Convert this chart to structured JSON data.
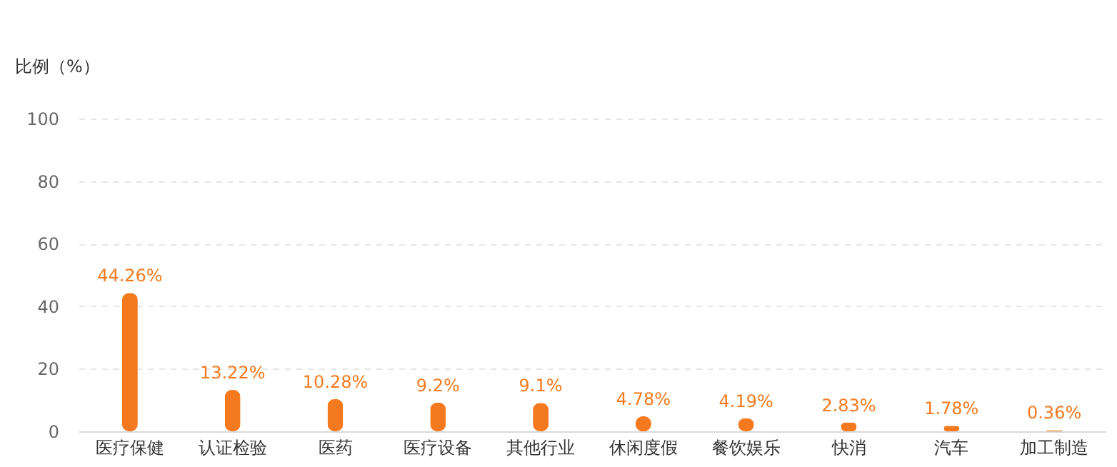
{
  "chart_data": {
    "type": "bar",
    "ylabel": "比例（%）",
    "categories": [
      "医疗保健",
      "认证检验",
      "医药",
      "医疗设备",
      "其他行业",
      "休闲度假",
      "餐饮娱乐",
      "快消",
      "汽车",
      "加工制造"
    ],
    "values": [
      44.26,
      13.22,
      10.28,
      9.2,
      9.1,
      4.78,
      4.19,
      2.83,
      1.78,
      0.36
    ],
    "value_labels": [
      "44.26%",
      "13.22%",
      "10.28%",
      "9.2%",
      "9.1%",
      "4.78%",
      "4.19%",
      "2.83%",
      "1.78%",
      "0.36%"
    ],
    "color": "#f57a1f",
    "ylim": [
      0,
      100
    ],
    "yticks": [
      0,
      20,
      40,
      60,
      80,
      100
    ],
    "grid": "y"
  }
}
